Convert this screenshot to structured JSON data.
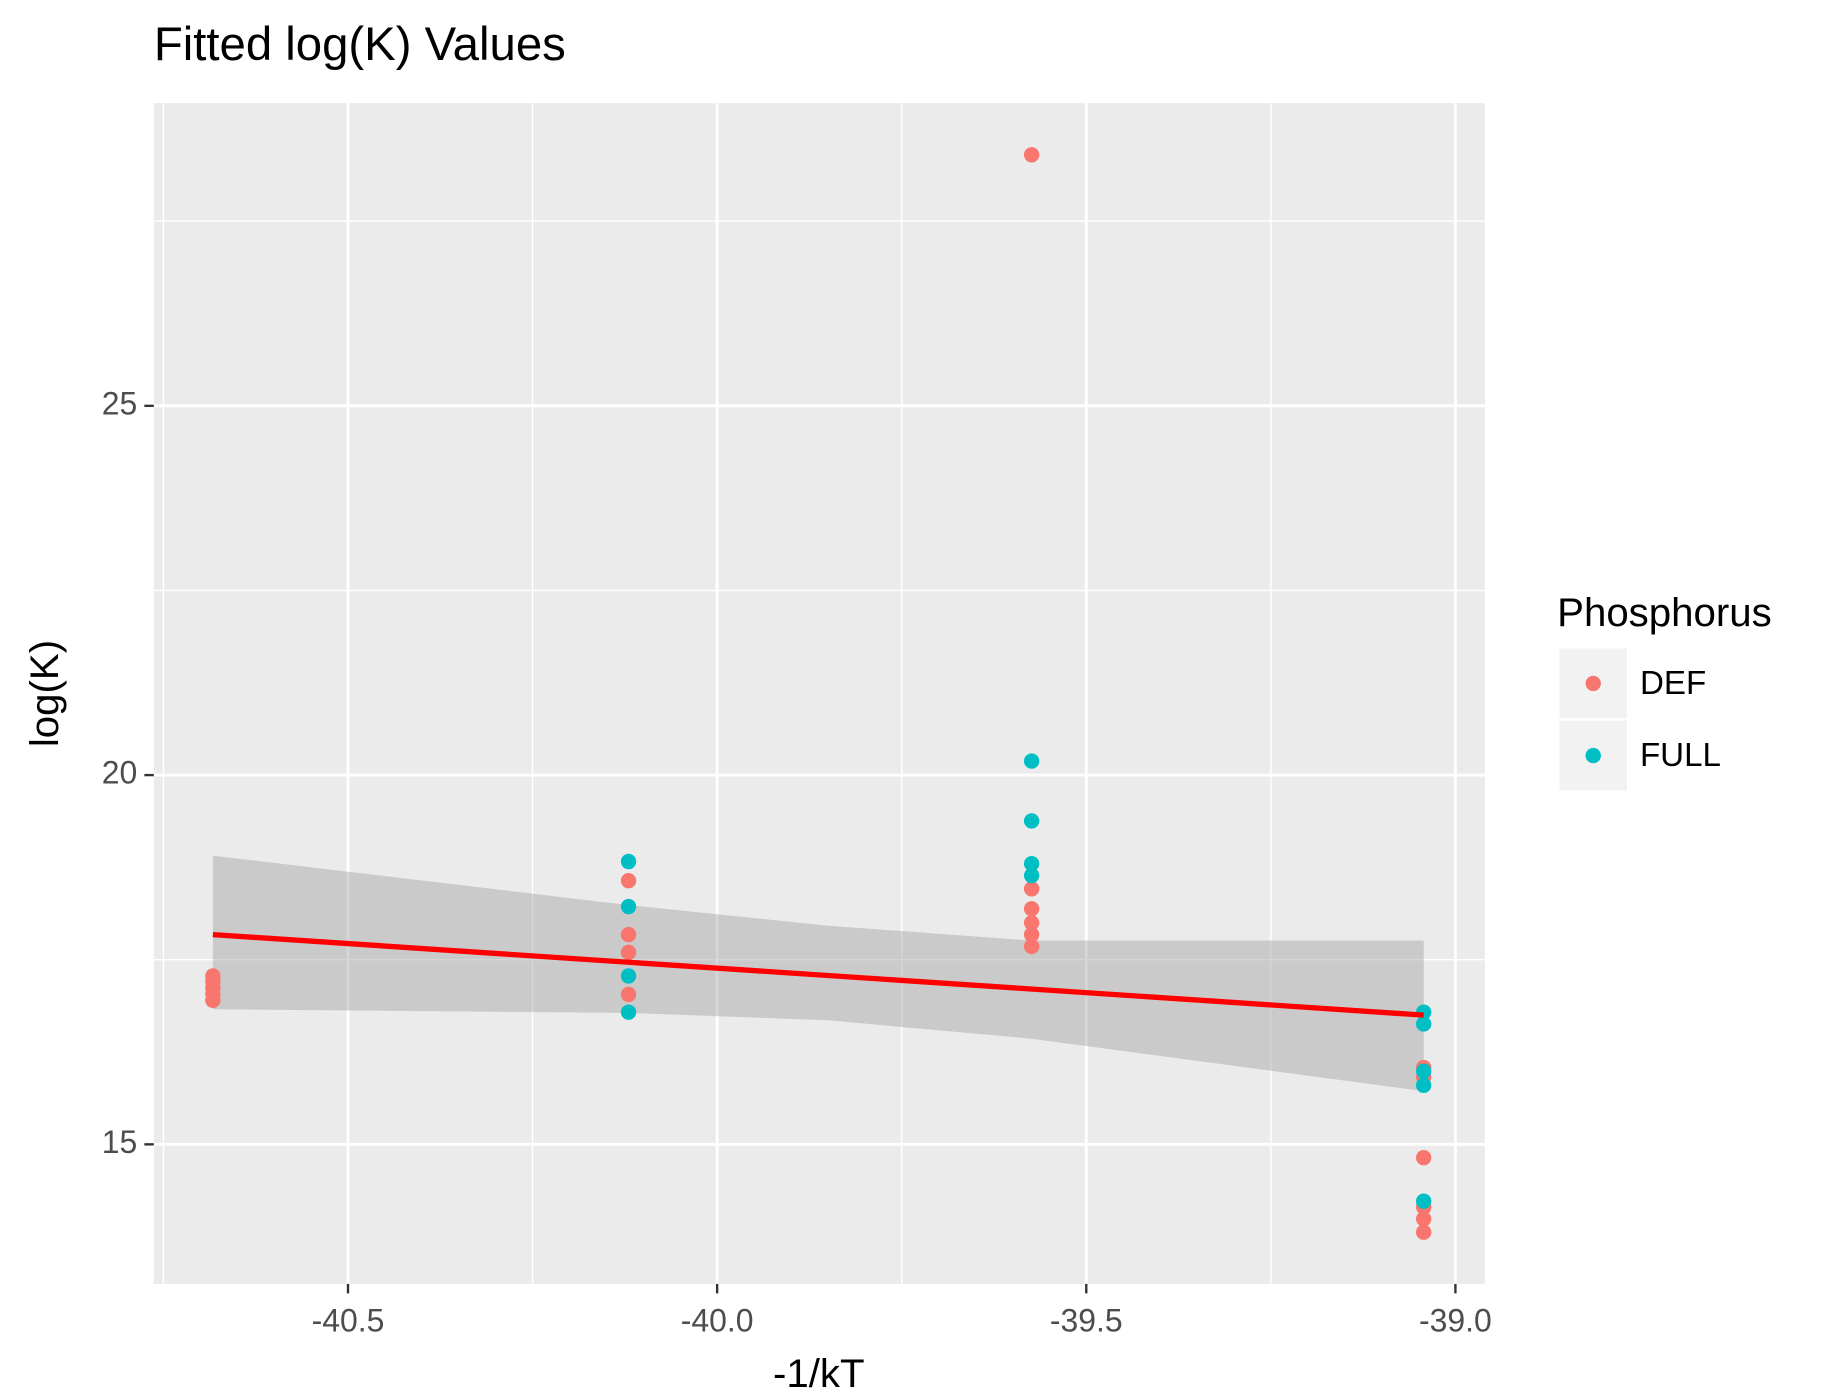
{
  "chart_data": {
    "type": "scatter",
    "title": "Fitted log(K) Values",
    "x_label": "-1/kT",
    "y_label": "log(K)",
    "xlim": [
      -40.763,
      -38.96
    ],
    "ylim": [
      13.11,
      29.1
    ],
    "xticks": [
      -40.5,
      {
        "value": -40.0,
        "label": "-40.0"
      },
      -39.5,
      {
        "value": -39.0,
        "label": "-39.0"
      }
    ],
    "yticks": [
      15,
      20,
      25
    ],
    "x_minor_ticks": [
      -40.75,
      -40.25,
      -39.75,
      -39.25
    ],
    "y_minor_ticks": [
      17.5,
      22.5,
      27.5
    ],
    "grid": true,
    "legend_title": "Phosphorus",
    "legend_position": "right",
    "series": [
      {
        "name": "DEF",
        "color": "#F8766D",
        "x": [
          -40.683,
          -40.683,
          -40.683,
          -40.683,
          -40.683,
          -40.12,
          -40.12,
          -40.12,
          -40.12,
          -39.574,
          -39.574,
          -39.574,
          -39.574,
          -39.574,
          -39.574,
          -39.043,
          -39.043,
          -39.043,
          -39.043,
          -39.043,
          -39.043
        ],
        "values": [
          17.28,
          17.2,
          17.12,
          17.04,
          16.95,
          18.57,
          17.84,
          17.6,
          17.03,
          28.4,
          18.46,
          18.19,
          18.0,
          17.84,
          17.68,
          16.04,
          15.91,
          14.82,
          14.15,
          13.99,
          13.81
        ]
      },
      {
        "name": "FULL",
        "color": "#00BFC4",
        "x": [
          -40.12,
          -40.12,
          -40.12,
          -40.12,
          -39.574,
          -39.574,
          -39.574,
          -39.574,
          -39.043,
          -39.043,
          -39.043,
          -39.043,
          -39.043
        ],
        "values": [
          18.83,
          18.22,
          17.28,
          16.79,
          20.19,
          19.38,
          18.8,
          18.64,
          16.79,
          16.63,
          15.99,
          15.8,
          14.23
        ]
      }
    ],
    "fit": {
      "color": "#FF0000",
      "x": [
        -40.683,
        -39.043
      ],
      "values": [
        17.84,
        16.75
      ]
    },
    "ribbon": {
      "color": "#999999",
      "x": [
        -40.683,
        -40.12,
        -39.85,
        -39.574,
        -39.043
      ],
      "upper": [
        18.91,
        18.24,
        17.96,
        17.76,
        17.76
      ],
      "lower": [
        16.83,
        16.78,
        16.68,
        16.43,
        15.72
      ]
    }
  }
}
